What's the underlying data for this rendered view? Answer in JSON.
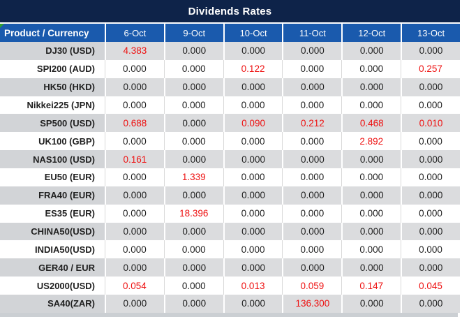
{
  "title": "Dividends Rates",
  "header": {
    "product_col": "Product / Currency",
    "date_cols": [
      "6-Oct",
      "9-Oct",
      "10-Oct",
      "11-Oct",
      "12-Oct",
      "13-Oct"
    ]
  },
  "rows": [
    {
      "product": "DJ30 (USD)",
      "values": [
        "4.383",
        "0.000",
        "0.000",
        "0.000",
        "0.000",
        "0.000"
      ],
      "red_indexes": [
        0
      ]
    },
    {
      "product": "SPI200 (AUD)",
      "values": [
        "0.000",
        "0.000",
        "0.122",
        "0.000",
        "0.000",
        "0.257"
      ],
      "red_indexes": [
        2,
        5
      ]
    },
    {
      "product": "HK50 (HKD)",
      "values": [
        "0.000",
        "0.000",
        "0.000",
        "0.000",
        "0.000",
        "0.000"
      ],
      "red_indexes": []
    },
    {
      "product": "Nikkei225 (JPN)",
      "values": [
        "0.000",
        "0.000",
        "0.000",
        "0.000",
        "0.000",
        "0.000"
      ],
      "red_indexes": []
    },
    {
      "product": "SP500 (USD)",
      "values": [
        "0.688",
        "0.000",
        "0.090",
        "0.212",
        "0.468",
        "0.010"
      ],
      "red_indexes": [
        0,
        2,
        3,
        4,
        5
      ]
    },
    {
      "product": "UK100 (GBP)",
      "values": [
        "0.000",
        "0.000",
        "0.000",
        "0.000",
        "2.892",
        "0.000"
      ],
      "red_indexes": [
        4
      ]
    },
    {
      "product": "NAS100 (USD)",
      "values": [
        "0.161",
        "0.000",
        "0.000",
        "0.000",
        "0.000",
        "0.000"
      ],
      "red_indexes": [
        0
      ]
    },
    {
      "product": "EU50 (EUR)",
      "values": [
        "0.000",
        "1.339",
        "0.000",
        "0.000",
        "0.000",
        "0.000"
      ],
      "red_indexes": [
        1
      ]
    },
    {
      "product": "FRA40 (EUR)",
      "values": [
        "0.000",
        "0.000",
        "0.000",
        "0.000",
        "0.000",
        "0.000"
      ],
      "red_indexes": []
    },
    {
      "product": "ES35 (EUR)",
      "values": [
        "0.000",
        "18.396",
        "0.000",
        "0.000",
        "0.000",
        "0.000"
      ],
      "red_indexes": [
        1
      ]
    },
    {
      "product": "CHINA50(USD)",
      "values": [
        "0.000",
        "0.000",
        "0.000",
        "0.000",
        "0.000",
        "0.000"
      ],
      "red_indexes": []
    },
    {
      "product": "INDIA50(USD)",
      "values": [
        "0.000",
        "0.000",
        "0.000",
        "0.000",
        "0.000",
        "0.000"
      ],
      "red_indexes": []
    },
    {
      "product": "GER40 / EUR",
      "values": [
        "0.000",
        "0.000",
        "0.000",
        "0.000",
        "0.000",
        "0.000"
      ],
      "red_indexes": []
    },
    {
      "product": "US2000(USD)",
      "values": [
        "0.054",
        "0.000",
        "0.013",
        "0.059",
        "0.147",
        "0.045"
      ],
      "red_indexes": [
        0,
        2,
        3,
        4,
        5
      ]
    },
    {
      "product": "SA40(ZAR)",
      "values": [
        "0.000",
        "0.000",
        "0.000",
        "136.300",
        "0.000",
        "0.000"
      ],
      "red_indexes": [
        3
      ]
    }
  ],
  "colors": {
    "title_bg": "#0E2349",
    "header_bg": "#1A5AAD",
    "header_text": "#FFFFFF",
    "row_gray_label": "#D2D4D7",
    "row_gray_value": "#DBDCDE",
    "row_white": "#FFFFFF",
    "value_red": "#EE1111",
    "value_black": "#1F1F1F",
    "marker_green": "#2FA12F",
    "bottom_strip": "#CBCFD3"
  }
}
